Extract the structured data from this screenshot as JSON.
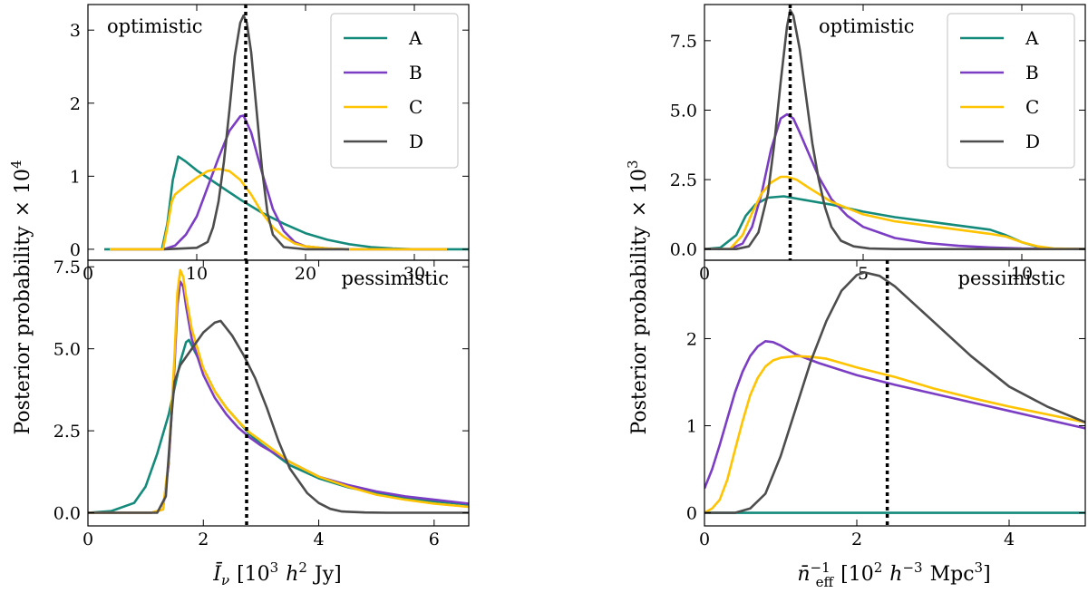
{
  "colors": {
    "A": "#148a7b",
    "B": "#7b3dc4",
    "C": "#ffc300",
    "D": "#4d4d4d",
    "ref": "#000000"
  },
  "labels": {
    "ylabel_left": "Posterior probability",
    "ylabel_right": "Posterior probability",
    "ylabel_left_factor": "× 10",
    "ylabel_left_exp": "4",
    "ylabel_right_factor": "× 10",
    "ylabel_right_exp": "3",
    "xlabel_left_sym": "Ī",
    "xlabel_left_sub": "ν",
    "xlabel_left_units": "[10",
    "xlabel_left_units_exp": "3",
    "xlabel_left_h": "h",
    "xlabel_left_h_exp": "2",
    "xlabel_left_tail": "Jy]",
    "xlabel_right_sym": "n̄",
    "xlabel_right_exp": "−1",
    "xlabel_right_sub": "eff",
    "xlabel_right_units": "[10",
    "xlabel_right_units_exp": "2",
    "xlabel_right_h": "h",
    "xlabel_right_h_exp": "−3",
    "xlabel_right_mpc": "Mpc",
    "xlabel_right_mpc_exp": "3",
    "xlabel_right_tail": "]"
  },
  "chart_data": [
    {
      "id": "tl",
      "type": "line",
      "annotation": "optimistic",
      "xlim": [
        0,
        35
      ],
      "ylim": [
        -0.15,
        3.35
      ],
      "xticks": [
        0,
        10,
        20,
        30
      ],
      "xtick_labels": [
        "0",
        "10",
        "20",
        "30"
      ],
      "yticks": [
        0,
        1,
        2,
        3
      ],
      "ytick_labels": [
        "0",
        "1",
        "2",
        "3"
      ],
      "legend": [
        "A",
        "B",
        "C",
        "D"
      ],
      "legend_position": "top-right",
      "reference_line": 14.5,
      "series": [
        {
          "name": "A",
          "x": [
            1.5,
            6.8,
            7.3,
            7.8,
            8.3,
            9,
            10,
            12,
            14,
            16,
            18,
            20,
            22,
            24,
            26,
            28,
            30,
            35
          ],
          "y": [
            0,
            0,
            0.35,
            0.95,
            1.27,
            1.2,
            1.08,
            0.88,
            0.68,
            0.5,
            0.35,
            0.22,
            0.13,
            0.07,
            0.03,
            0.01,
            0,
            0
          ]
        },
        {
          "name": "B",
          "x": [
            2,
            7,
            8,
            9,
            10,
            11,
            12,
            13,
            14,
            14.3,
            15,
            16,
            17,
            18,
            19,
            20,
            22,
            24,
            33
          ],
          "y": [
            0,
            0,
            0.05,
            0.2,
            0.45,
            0.85,
            1.25,
            1.62,
            1.82,
            1.83,
            1.6,
            1.05,
            0.55,
            0.25,
            0.1,
            0.04,
            0.01,
            0,
            0
          ]
        },
        {
          "name": "C",
          "x": [
            2,
            6.9,
            7.3,
            7.7,
            8,
            9,
            10,
            11,
            12,
            13,
            14,
            15,
            16,
            17,
            18,
            19,
            20,
            22,
            24,
            33
          ],
          "y": [
            0,
            0,
            0.3,
            0.65,
            0.75,
            0.87,
            0.98,
            1.07,
            1.1,
            1.07,
            0.95,
            0.75,
            0.5,
            0.3,
            0.17,
            0.08,
            0.04,
            0.01,
            0,
            0
          ]
        },
        {
          "name": "D",
          "x": [
            7,
            10,
            11,
            11.5,
            12,
            12.5,
            13,
            13.5,
            14,
            14.3,
            14.6,
            15,
            15.5,
            16,
            16.5,
            17,
            18,
            20,
            24
          ],
          "y": [
            0,
            0.02,
            0.1,
            0.3,
            0.65,
            1.2,
            1.9,
            2.65,
            3.1,
            3.2,
            3.1,
            2.7,
            1.9,
            1.1,
            0.5,
            0.2,
            0.03,
            0,
            0
          ]
        }
      ]
    },
    {
      "id": "bl",
      "type": "line",
      "annotation": "pessimistic",
      "xlim": [
        0,
        6.6
      ],
      "ylim": [
        -0.4,
        7.7
      ],
      "xticks": [
        0,
        2,
        4,
        6
      ],
      "xtick_labels": [
        "0",
        "2",
        "4",
        "6"
      ],
      "yticks": [
        0,
        2.5,
        5
      ],
      "ytick_labels": [
        "0.0",
        "2.5",
        "5.0"
      ],
      "extra_ytick": 7.5,
      "extra_ytick_label": "7.5",
      "reference_line": 2.75,
      "series": [
        {
          "name": "A",
          "x": [
            0,
            0.4,
            0.8,
            1.0,
            1.2,
            1.4,
            1.5,
            1.6,
            1.7,
            1.75,
            1.8,
            2.0,
            2.2,
            2.4,
            2.6,
            2.8,
            3.0,
            3.5,
            4.0,
            4.5,
            5.0,
            5.5,
            6.0,
            6.6
          ],
          "y": [
            0,
            0.05,
            0.3,
            0.8,
            1.8,
            3.0,
            3.8,
            4.6,
            5.2,
            5.27,
            5.1,
            4.4,
            3.7,
            3.2,
            2.8,
            2.4,
            2.1,
            1.45,
            1.05,
            0.78,
            0.6,
            0.45,
            0.35,
            0.25
          ]
        },
        {
          "name": "B",
          "x": [
            0,
            1.1,
            1.3,
            1.4,
            1.5,
            1.55,
            1.6,
            1.65,
            1.7,
            1.8,
            2.0,
            2.2,
            2.4,
            2.6,
            2.8,
            3.0,
            3.5,
            4.0,
            4.5,
            5.0,
            5.5,
            6.0,
            6.6
          ],
          "y": [
            0,
            0,
            0.1,
            1.5,
            4.5,
            6.3,
            7.05,
            6.9,
            6.3,
            5.3,
            4.2,
            3.5,
            3.0,
            2.6,
            2.3,
            2.05,
            1.55,
            1.1,
            0.85,
            0.65,
            0.5,
            0.4,
            0.28
          ]
        },
        {
          "name": "C",
          "x": [
            0,
            1.1,
            1.3,
            1.4,
            1.5,
            1.55,
            1.6,
            1.65,
            1.7,
            1.8,
            2.0,
            2.2,
            2.4,
            2.6,
            2.8,
            3.0,
            3.5,
            4.0,
            4.5,
            5.0,
            5.5,
            6.0,
            6.6
          ],
          "y": [
            0,
            0,
            0.1,
            1.6,
            4.8,
            6.7,
            7.4,
            7.2,
            6.6,
            5.6,
            4.4,
            3.7,
            3.2,
            2.8,
            2.45,
            2.2,
            1.55,
            1.1,
            0.8,
            0.55,
            0.4,
            0.28,
            0.18
          ]
        },
        {
          "name": "D",
          "x": [
            0,
            1.2,
            1.35,
            1.45,
            1.5,
            1.6,
            1.8,
            2.0,
            2.2,
            2.3,
            2.5,
            2.7,
            2.9,
            3.1,
            3.3,
            3.5,
            3.8,
            4.0,
            4.2,
            4.4,
            4.8,
            5.2,
            6.6
          ],
          "y": [
            0,
            0,
            0.5,
            3.0,
            4.0,
            4.5,
            5.0,
            5.5,
            5.8,
            5.85,
            5.4,
            4.8,
            4.1,
            3.2,
            2.2,
            1.35,
            0.6,
            0.3,
            0.12,
            0.04,
            0.01,
            0,
            0
          ]
        }
      ]
    },
    {
      "id": "tr",
      "type": "line",
      "annotation": "optimistic",
      "xlim": [
        0,
        12
      ],
      "ylim": [
        -0.4,
        8.8
      ],
      "xticks": [
        0,
        5,
        10
      ],
      "xtick_labels": [
        "0",
        "5",
        "10"
      ],
      "yticks": [
        0,
        2.5,
        5,
        7.5
      ],
      "ytick_labels": [
        "0.0",
        "2.5",
        "5.0",
        "7.5"
      ],
      "legend": [
        "A",
        "B",
        "C",
        "D"
      ],
      "legend_position": "top-right",
      "reference_line": 2.7,
      "series": [
        {
          "name": "A",
          "x": [
            0,
            0.5,
            1.0,
            1.3,
            1.6,
            2.0,
            2.5,
            3,
            4,
            5,
            6,
            7,
            8,
            9,
            9.5,
            10,
            10.5,
            11,
            12
          ],
          "y": [
            0,
            0.05,
            0.5,
            1.2,
            1.6,
            1.85,
            1.9,
            1.8,
            1.6,
            1.35,
            1.15,
            1.0,
            0.85,
            0.7,
            0.5,
            0.25,
            0.08,
            0,
            0
          ]
        },
        {
          "name": "B",
          "x": [
            0,
            0.8,
            1.2,
            1.5,
            1.8,
            2.1,
            2.4,
            2.6,
            2.8,
            3.0,
            3.3,
            3.6,
            4.0,
            4.5,
            5,
            6,
            7,
            8,
            9,
            10,
            12
          ],
          "y": [
            0,
            0,
            0.2,
            0.8,
            2.0,
            3.6,
            4.7,
            4.85,
            4.7,
            4.2,
            3.4,
            2.6,
            1.8,
            1.2,
            0.8,
            0.4,
            0.22,
            0.12,
            0.06,
            0.02,
            0
          ]
        },
        {
          "name": "C",
          "x": [
            0,
            0.8,
            1.2,
            1.5,
            1.8,
            2.1,
            2.4,
            2.6,
            2.9,
            3.3,
            4,
            5,
            6,
            7,
            8,
            9,
            9.5,
            10,
            10.5,
            11,
            12
          ],
          "y": [
            0,
            0,
            0.5,
            1.3,
            2.0,
            2.4,
            2.6,
            2.6,
            2.5,
            2.2,
            1.7,
            1.25,
            1.0,
            0.85,
            0.7,
            0.55,
            0.45,
            0.25,
            0.1,
            0.02,
            0
          ]
        },
        {
          "name": "D",
          "x": [
            0,
            1.0,
            1.4,
            1.7,
            2.0,
            2.2,
            2.4,
            2.6,
            2.7,
            2.8,
            3.0,
            3.2,
            3.4,
            3.6,
            3.8,
            4.0,
            4.3,
            4.7,
            5.2,
            6,
            12
          ],
          "y": [
            0,
            0,
            0.1,
            0.6,
            2.0,
            3.8,
            6.0,
            8.0,
            8.6,
            8.4,
            7.2,
            5.5,
            3.8,
            2.5,
            1.5,
            0.8,
            0.3,
            0.1,
            0.02,
            0,
            0
          ]
        }
      ]
    },
    {
      "id": "br",
      "type": "line",
      "annotation": "pessimistic",
      "xlim": [
        0,
        5
      ],
      "ylim": [
        -0.15,
        2.9
      ],
      "xticks": [
        0,
        2,
        4
      ],
      "xtick_labels": [
        "0",
        "2",
        "4"
      ],
      "yticks": [
        0,
        1,
        2
      ],
      "ytick_labels": [
        "0",
        "1",
        "2"
      ],
      "reference_line": 2.4,
      "series": [
        {
          "name": "A",
          "x": [
            0,
            5
          ],
          "y": [
            0,
            0
          ]
        },
        {
          "name": "B",
          "x": [
            0,
            0.1,
            0.2,
            0.3,
            0.4,
            0.5,
            0.6,
            0.7,
            0.8,
            0.9,
            1.0,
            1.2,
            1.5,
            2,
            2.5,
            3,
            3.5,
            4,
            4.5,
            5
          ],
          "y": [
            0.28,
            0.5,
            0.78,
            1.08,
            1.38,
            1.62,
            1.8,
            1.91,
            1.97,
            1.96,
            1.92,
            1.82,
            1.72,
            1.58,
            1.47,
            1.37,
            1.27,
            1.17,
            1.07,
            0.97
          ]
        },
        {
          "name": "C",
          "x": [
            0,
            0.1,
            0.2,
            0.3,
            0.4,
            0.5,
            0.6,
            0.7,
            0.8,
            0.9,
            1.0,
            1.2,
            1.4,
            1.6,
            1.8,
            2,
            2.5,
            3,
            3.5,
            4,
            4.5,
            5
          ],
          "y": [
            0,
            0.05,
            0.15,
            0.38,
            0.72,
            1.05,
            1.35,
            1.55,
            1.68,
            1.75,
            1.78,
            1.8,
            1.79,
            1.77,
            1.72,
            1.67,
            1.56,
            1.43,
            1.32,
            1.22,
            1.13,
            1.04
          ]
        },
        {
          "name": "D",
          "x": [
            0,
            0.4,
            0.6,
            0.8,
            1.0,
            1.2,
            1.4,
            1.6,
            1.8,
            2.0,
            2.1,
            2.3,
            2.5,
            3,
            3.5,
            4,
            4.5,
            5
          ],
          "y": [
            0,
            0,
            0.05,
            0.22,
            0.65,
            1.2,
            1.75,
            2.2,
            2.55,
            2.73,
            2.76,
            2.72,
            2.6,
            2.2,
            1.8,
            1.45,
            1.22,
            1.04
          ]
        }
      ]
    }
  ]
}
